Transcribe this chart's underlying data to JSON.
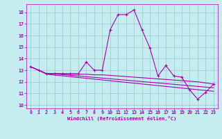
{
  "xlabel": "Windchill (Refroidissement éolien,°C)",
  "xlim": [
    -0.5,
    23.5
  ],
  "ylim": [
    9.7,
    18.7
  ],
  "yticks": [
    10,
    11,
    12,
    13,
    14,
    15,
    16,
    17,
    18
  ],
  "xticks": [
    0,
    1,
    2,
    3,
    4,
    5,
    6,
    7,
    8,
    9,
    10,
    11,
    12,
    13,
    14,
    15,
    16,
    17,
    18,
    19,
    20,
    21,
    22,
    23
  ],
  "background_color": "#c5edf0",
  "grid_color": "#9ecdd6",
  "line_color": "#aa00aa",
  "series_main": [
    13.3,
    13.0,
    12.7,
    12.7,
    12.7,
    12.7,
    12.7,
    13.7,
    13.0,
    13.0,
    16.5,
    17.8,
    17.8,
    18.2,
    16.5,
    14.9,
    12.5,
    13.4,
    12.5,
    12.4,
    11.3,
    10.5,
    11.1,
    11.8
  ],
  "series_flat1": [
    13.3,
    13.0,
    12.7,
    12.7,
    12.7,
    12.65,
    12.65,
    12.65,
    12.6,
    12.6,
    12.55,
    12.5,
    12.45,
    12.4,
    12.35,
    12.3,
    12.25,
    12.2,
    12.15,
    12.1,
    12.05,
    12.0,
    11.9,
    11.8
  ],
  "series_flat2": [
    13.3,
    13.0,
    12.7,
    12.68,
    12.62,
    12.56,
    12.5,
    12.44,
    12.38,
    12.32,
    12.26,
    12.2,
    12.14,
    12.08,
    12.02,
    11.96,
    11.9,
    11.84,
    11.78,
    11.72,
    11.66,
    11.6,
    11.54,
    11.48
  ],
  "series_flat3": [
    13.3,
    13.0,
    12.65,
    12.58,
    12.51,
    12.44,
    12.37,
    12.3,
    12.23,
    12.16,
    12.09,
    12.02,
    11.95,
    11.88,
    11.81,
    11.74,
    11.67,
    11.6,
    11.53,
    11.46,
    11.39,
    11.32,
    11.25,
    11.18
  ]
}
